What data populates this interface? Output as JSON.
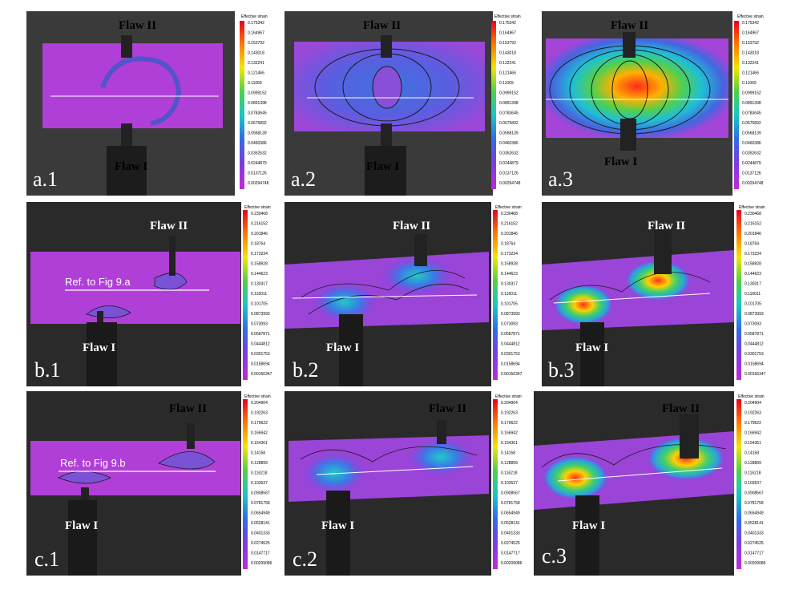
{
  "legend_title": "Effective strain",
  "panels": [
    {
      "id": "a.1",
      "label": "a.1",
      "flaw_top": "Flaw II",
      "flaw_bottom": "Flaw I",
      "ref_label": "",
      "legend_values": [
        "0.175342",
        "0.164967",
        "0.153792",
        "0.143018",
        "0.132241",
        "0.121466",
        "0.11069",
        "0.0999152",
        "0.0891398",
        "0.0783645",
        "0.0675892",
        "0.0568139",
        "0.0460386",
        "0.0352632",
        "0.0244879",
        "0.0137126",
        "0.00294748"
      ]
    },
    {
      "id": "a.2",
      "label": "a.2",
      "flaw_top": "Flaw II",
      "flaw_bottom": "Flaw I",
      "ref_label": "",
      "legend_values": [
        "0.175342",
        "0.164967",
        "0.153792",
        "0.143018",
        "0.132241",
        "0.121466",
        "0.11069",
        "0.0999152",
        "0.0891398",
        "0.0783645",
        "0.0675892",
        "0.0568139",
        "0.0460386",
        "0.0352632",
        "0.0244879",
        "0.0137126",
        "0.00294748"
      ]
    },
    {
      "id": "a.3",
      "label": "a.3",
      "flaw_top": "Flaw II",
      "flaw_bottom": "Flaw I",
      "ref_label": "",
      "legend_values": [
        "0.175342",
        "0.164967",
        "0.153792",
        "0.143018",
        "0.132241",
        "0.121466",
        "0.11069",
        "0.0999152",
        "0.0891398",
        "0.0783645",
        "0.0675892",
        "0.0568139",
        "0.0460386",
        "0.0352632",
        "0.0244879",
        "0.0137126",
        "0.00294748"
      ]
    },
    {
      "id": "b.1",
      "label": "b.1",
      "flaw_top": "Flaw II",
      "flaw_bottom": "Flaw I",
      "ref_label": "Ref. to Fig 9.a",
      "legend_values": [
        "0.230468",
        "0.216152",
        "0.201846",
        "0.18764",
        "0.173234",
        "0.158928",
        "0.144623",
        "0.130317",
        "0.116011",
        "0.101705",
        "0.0873993",
        "0.073093",
        "0.0587871",
        "0.0444812",
        "0.0301753",
        "0.0158694",
        "0.00156347"
      ]
    },
    {
      "id": "b.2",
      "label": "b.2",
      "flaw_top": "Flaw II",
      "flaw_bottom": "Flaw I",
      "ref_label": "",
      "legend_values": [
        "0.230468",
        "0.216152",
        "0.201846",
        "0.18764",
        "0.173234",
        "0.158928",
        "0.144623",
        "0.130317",
        "0.116011",
        "0.101705",
        "0.0873993",
        "0.073093",
        "0.0587871",
        "0.0444812",
        "0.0301753",
        "0.0158694",
        "0.00156347"
      ]
    },
    {
      "id": "b.3",
      "label": "b.3",
      "flaw_top": "Flaw II",
      "flaw_bottom": "Flaw I",
      "ref_label": "",
      "legend_values": [
        "0.230468",
        "0.216152",
        "0.201846",
        "0.18764",
        "0.173234",
        "0.158928",
        "0.144623",
        "0.130317",
        "0.116011",
        "0.101705",
        "0.0873993",
        "0.073093",
        "0.0587871",
        "0.0444812",
        "0.0301753",
        "0.0158694",
        "0.00156347"
      ]
    },
    {
      "id": "c.1",
      "label": "c.1",
      "flaw_top": "Flaw II",
      "flaw_bottom": "Flaw I",
      "ref_label": "Ref. to Fig 9.b",
      "legend_values": [
        "0.204904",
        "0.192263",
        "0.179622",
        "0.166942",
        "0.154361",
        "0.14158",
        "0.128899",
        "0.116218",
        "0.103537",
        "0.0908567",
        "0.0781758",
        "0.0654949",
        "0.0528141",
        "0.0401333",
        "0.0274525",
        "0.0147717",
        "0.00209086"
      ]
    },
    {
      "id": "c.2",
      "label": "c.2",
      "flaw_top": "Flaw II",
      "flaw_bottom": "Flaw I",
      "ref_label": "",
      "legend_values": [
        "0.204904",
        "0.192263",
        "0.179622",
        "0.166942",
        "0.154361",
        "0.14158",
        "0.128899",
        "0.116218",
        "0.103537",
        "0.0908567",
        "0.0781758",
        "0.0654949",
        "0.0528141",
        "0.0401333",
        "0.0274525",
        "0.0147717",
        "0.00209086"
      ]
    },
    {
      "id": "c.3",
      "label": "c.3",
      "flaw_top": "Flaw II",
      "flaw_bottom": "Flaw I",
      "ref_label": "",
      "legend_values": [
        "0.204904",
        "0.192263",
        "0.179622",
        "0.166942",
        "0.154361",
        "0.14158",
        "0.128899",
        "0.116218",
        "0.103537",
        "0.0908567",
        "0.0781758",
        "0.0654949",
        "0.0528141",
        "0.0401333",
        "0.0274525",
        "0.0147717",
        "0.00209086"
      ]
    }
  ]
}
